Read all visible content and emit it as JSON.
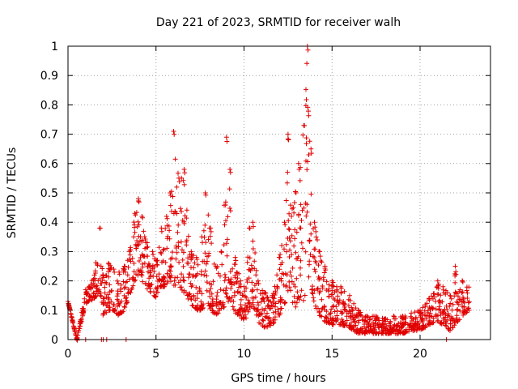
{
  "chart_data": {
    "type": "scatter",
    "title": "Day 221 of 2023, SRMTID for receiver walh",
    "xlabel": "GPS time / hours",
    "ylabel": "SRMTID / TECUs",
    "xlim": [
      0,
      24
    ],
    "ylim": [
      0,
      1
    ],
    "xticks": [
      0,
      5,
      10,
      15,
      20
    ],
    "xtick_labels": [
      "0",
      "5",
      "10",
      "15",
      "20"
    ],
    "yticks": [
      0,
      0.1,
      0.2,
      0.3,
      0.4,
      0.5,
      0.6,
      0.7,
      0.8,
      0.9,
      1
    ],
    "ytick_labels": [
      "0",
      "0.1",
      "0.2",
      "0.3",
      "0.4",
      "0.5",
      "0.6",
      "0.7",
      "0.8",
      "0.9",
      "1"
    ],
    "grid": true,
    "marker": "+",
    "color": "#e00000",
    "series": [
      {
        "name": "SRMTID",
        "envelope": [
          [
            0.0,
            0.13,
            0.13
          ],
          [
            0.5,
            0.0,
            0.0
          ],
          [
            1.0,
            0.12,
            0.17
          ],
          [
            1.2,
            0.13,
            0.18
          ],
          [
            1.5,
            0.14,
            0.22
          ],
          [
            1.8,
            0.16,
            0.38
          ],
          [
            2.0,
            0.08,
            0.22
          ],
          [
            2.3,
            0.1,
            0.26
          ],
          [
            2.6,
            0.1,
            0.24
          ],
          [
            2.9,
            0.08,
            0.23
          ],
          [
            3.2,
            0.1,
            0.25
          ],
          [
            3.5,
            0.15,
            0.3
          ],
          [
            3.8,
            0.2,
            0.43
          ],
          [
            4.0,
            0.22,
            0.48
          ],
          [
            4.2,
            0.2,
            0.42
          ],
          [
            4.5,
            0.17,
            0.33
          ],
          [
            4.8,
            0.15,
            0.3
          ],
          [
            5.0,
            0.14,
            0.27
          ],
          [
            5.3,
            0.18,
            0.38
          ],
          [
            5.6,
            0.18,
            0.42
          ],
          [
            5.8,
            0.2,
            0.5
          ],
          [
            6.0,
            0.18,
            0.71
          ],
          [
            6.3,
            0.18,
            0.55
          ],
          [
            6.6,
            0.16,
            0.58
          ],
          [
            7.0,
            0.12,
            0.3
          ],
          [
            7.3,
            0.1,
            0.28
          ],
          [
            7.6,
            0.1,
            0.35
          ],
          [
            7.8,
            0.12,
            0.5
          ],
          [
            8.1,
            0.1,
            0.38
          ],
          [
            8.4,
            0.08,
            0.25
          ],
          [
            8.7,
            0.1,
            0.3
          ],
          [
            9.0,
            0.12,
            0.69
          ],
          [
            9.2,
            0.14,
            0.58
          ],
          [
            9.5,
            0.09,
            0.28
          ],
          [
            9.8,
            0.08,
            0.2
          ],
          [
            10.0,
            0.05,
            0.18
          ],
          [
            10.3,
            0.1,
            0.38
          ],
          [
            10.5,
            0.12,
            0.4
          ],
          [
            10.8,
            0.06,
            0.2
          ],
          [
            11.2,
            0.04,
            0.16
          ],
          [
            11.6,
            0.05,
            0.15
          ],
          [
            12.0,
            0.08,
            0.28
          ],
          [
            12.3,
            0.12,
            0.4
          ],
          [
            12.5,
            0.15,
            0.7
          ],
          [
            12.8,
            0.12,
            0.45
          ],
          [
            13.1,
            0.1,
            0.6
          ],
          [
            13.4,
            0.12,
            0.73
          ],
          [
            13.6,
            0.2,
            1.0
          ],
          [
            13.8,
            0.18,
            0.65
          ],
          [
            14.0,
            0.12,
            0.4
          ],
          [
            14.3,
            0.08,
            0.3
          ],
          [
            14.6,
            0.06,
            0.25
          ],
          [
            15.0,
            0.05,
            0.2
          ],
          [
            15.5,
            0.05,
            0.18
          ],
          [
            16.0,
            0.04,
            0.15
          ],
          [
            16.5,
            0.02,
            0.1
          ],
          [
            17.0,
            0.02,
            0.08
          ],
          [
            17.5,
            0.02,
            0.08
          ],
          [
            18.0,
            0.02,
            0.07
          ],
          [
            18.5,
            0.02,
            0.08
          ],
          [
            19.0,
            0.02,
            0.08
          ],
          [
            19.5,
            0.03,
            0.09
          ],
          [
            20.0,
            0.03,
            0.1
          ],
          [
            20.5,
            0.05,
            0.14
          ],
          [
            21.0,
            0.06,
            0.2
          ],
          [
            21.3,
            0.05,
            0.18
          ],
          [
            21.7,
            0.03,
            0.15
          ],
          [
            22.0,
            0.05,
            0.25
          ],
          [
            22.4,
            0.08,
            0.2
          ],
          [
            22.8,
            0.1,
            0.18
          ]
        ],
        "zero_points": [
          1.0,
          1.9,
          2.0,
          2.2,
          3.3,
          21.5
        ]
      }
    ]
  }
}
